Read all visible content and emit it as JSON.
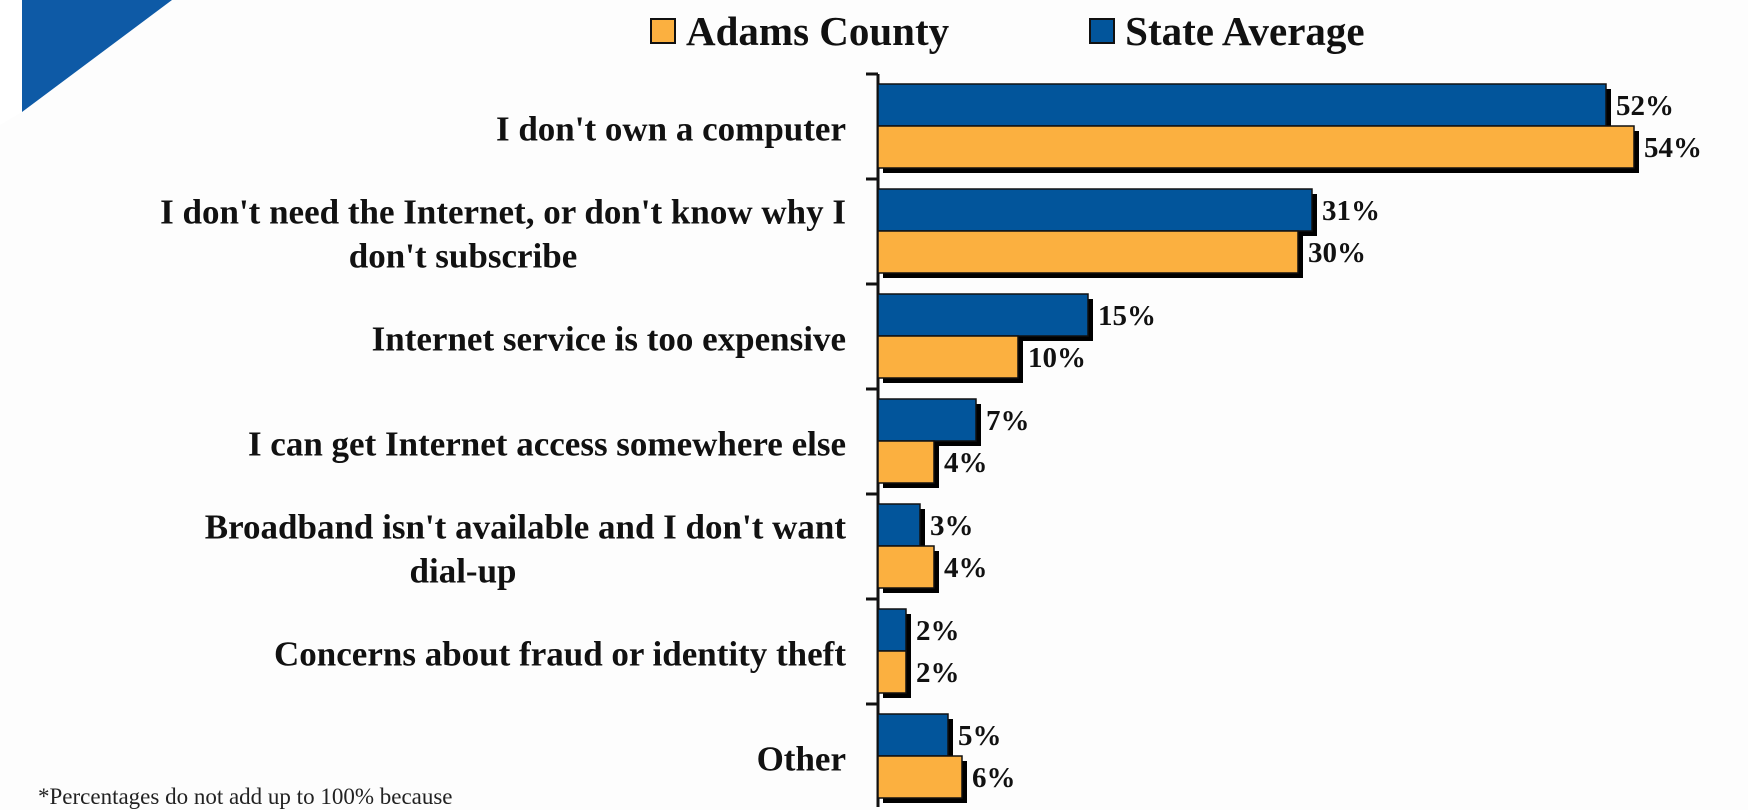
{
  "chart_data": {
    "type": "bar",
    "orientation": "horizontal",
    "categories": [
      [
        "I don't own a computer"
      ],
      [
        "I don't need the Internet, or don't know why I",
        "don't subscribe"
      ],
      [
        "Internet service is too expensive"
      ],
      [
        "I can get Internet access somewhere else"
      ],
      [
        "Broadband isn't available and I don't want",
        "dial-up"
      ],
      [
        "Concerns about fraud or identity theft"
      ],
      [
        "Other"
      ]
    ],
    "series": [
      {
        "name": "State Average",
        "color": "#02559b",
        "values": [
          52,
          31,
          15,
          7,
          3,
          2,
          5
        ]
      },
      {
        "name": "Adams County",
        "color": "#fbb040",
        "values": [
          54,
          30,
          10,
          4,
          4,
          2,
          6
        ]
      }
    ],
    "value_suffix": "%",
    "xlim": [
      0,
      54
    ],
    "legend_order": [
      "Adams County",
      "State Average"
    ],
    "legend_position": "top",
    "grid": false
  },
  "legend": {
    "adams_label": "Adams County",
    "state_label": "State Average"
  },
  "footnote": "*Percentages do not add up to 100% because"
}
